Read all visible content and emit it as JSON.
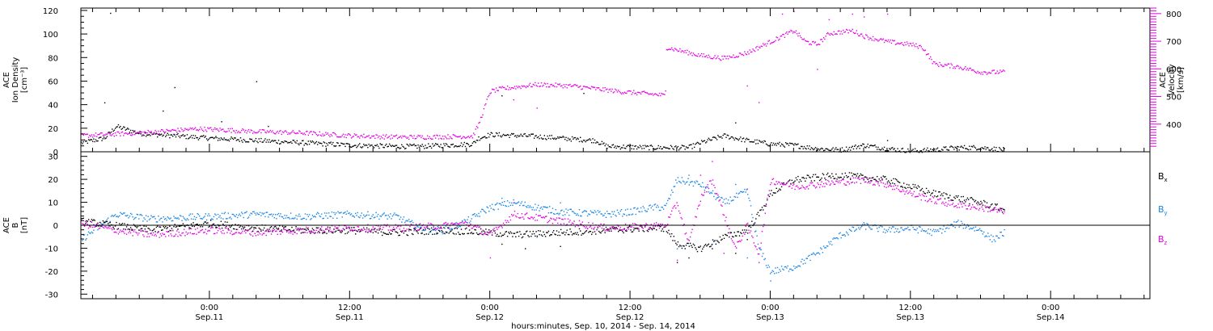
{
  "colors": {
    "black": "#000000",
    "magenta": "#e600e6",
    "blue": "#1a86e6"
  },
  "x_axis": {
    "title": "hours:minutes, Sep. 10, 2014 - Sep. 14, 2014",
    "range_hours": [
      -11,
      80.5
    ],
    "ticks": [
      {
        "hour": 0,
        "time": "0:00",
        "date": "Sep.11"
      },
      {
        "hour": 12,
        "time": "12:00",
        "date": "Sep.11"
      },
      {
        "hour": 24,
        "time": "0:00",
        "date": "Sep.12"
      },
      {
        "hour": 36,
        "time": "12:00",
        "date": "Sep.12"
      },
      {
        "hour": 48,
        "time": "0:00",
        "date": "Sep.13"
      },
      {
        "hour": 60,
        "time": "12:00",
        "date": "Sep.13"
      },
      {
        "hour": 72,
        "time": "0:00",
        "date": "Sep.14"
      }
    ]
  },
  "panel_top": {
    "left_axis": {
      "label_lines": [
        "ACE",
        "Ion Density",
        "[cm⁻³]"
      ],
      "range": [
        0,
        122
      ],
      "ticks": [
        0,
        20,
        40,
        60,
        80,
        100,
        120
      ]
    },
    "right_axis": {
      "label_lines": [
        "ACE",
        "Velocity",
        "[km/s]"
      ],
      "range": [
        300,
        820
      ],
      "ticks": [
        400,
        500,
        600,
        700,
        800
      ]
    }
  },
  "panel_bottom": {
    "left_axis": {
      "label_lines": [
        "ACE",
        "B",
        "[nT]"
      ],
      "range": [
        -32,
        32
      ],
      "ticks": [
        -30,
        -20,
        -10,
        0,
        10,
        20,
        30
      ]
    },
    "legend": [
      {
        "label": "B",
        "sub": "x",
        "color": "#000000"
      },
      {
        "label": "B",
        "sub": "y",
        "color": "#1a86e6"
      },
      {
        "label": "B",
        "sub": "z",
        "color": "#e600e6"
      }
    ]
  },
  "chart_data": [
    {
      "type": "scatter",
      "panel": "top",
      "series": [
        {
          "axis": "left",
          "color": "#000000",
          "knots": [
            [
              -11,
              8
            ],
            [
              -9,
              12
            ],
            [
              -8,
              22
            ],
            [
              -6,
              16
            ],
            [
              0,
              12
            ],
            [
              6,
              9
            ],
            [
              12,
              6
            ],
            [
              16,
              5
            ],
            [
              18,
              5
            ],
            [
              22.5,
              7
            ],
            [
              23,
              12
            ],
            [
              24,
              15
            ],
            [
              27,
              14
            ],
            [
              30,
              12
            ],
            [
              33,
              10
            ],
            [
              34,
              5
            ],
            [
              38,
              4
            ],
            [
              40,
              4
            ],
            [
              41,
              4
            ],
            [
              42,
              8
            ],
            [
              44,
              14
            ],
            [
              46,
              10
            ],
            [
              48,
              7
            ],
            [
              50,
              6
            ],
            [
              52,
              3
            ],
            [
              54,
              2
            ],
            [
              56,
              6
            ],
            [
              58,
              3
            ],
            [
              60,
              1
            ],
            [
              62,
              2
            ],
            [
              64,
              4
            ],
            [
              66,
              4
            ],
            [
              67,
              3
            ],
            [
              68,
              2
            ]
          ],
          "noise": 2,
          "spikes": [
            [
              -8.5,
              118
            ],
            [
              -9,
              42
            ],
            [
              -3,
              55
            ],
            [
              -4,
              35
            ],
            [
              1,
              26
            ],
            [
              4,
              60
            ],
            [
              5,
              22
            ],
            [
              25,
              48
            ],
            [
              32,
              50
            ],
            [
              45,
              25
            ],
            [
              58,
              10
            ]
          ]
        },
        {
          "axis": "right",
          "color": "#e600e6",
          "knots": [
            [
              -11,
              360
            ],
            [
              -6,
              370
            ],
            [
              -1,
              385
            ],
            [
              4,
              375
            ],
            [
              8,
              370
            ],
            [
              12,
              360
            ],
            [
              16,
              355
            ],
            [
              18,
              355
            ],
            [
              22.5,
              358
            ],
            [
              23,
              400
            ],
            [
              24,
              520
            ],
            [
              25,
              530
            ],
            [
              28,
              545
            ],
            [
              31,
              540
            ],
            [
              33,
              530
            ],
            [
              35,
              520
            ],
            [
              38,
              510
            ],
            [
              39,
              505
            ],
            [
              39.01,
              680
            ],
            [
              40,
              670
            ],
            [
              42,
              650
            ],
            [
              44,
              640
            ],
            [
              46,
              660
            ],
            [
              47,
              680
            ],
            [
              49,
              720
            ],
            [
              50,
              740
            ],
            [
              51,
              700
            ],
            [
              52,
              690
            ],
            [
              53,
              730
            ],
            [
              55,
              740
            ],
            [
              56,
              720
            ],
            [
              58,
              700
            ],
            [
              60,
              690
            ],
            [
              61,
              680
            ],
            [
              62,
              620
            ],
            [
              64,
              610
            ],
            [
              66,
              590
            ],
            [
              68,
              590
            ]
          ],
          "noise": 8,
          "spikes": [
            [
              46,
              540
            ],
            [
              47,
              480
            ],
            [
              49,
              800
            ],
            [
              50,
              810
            ],
            [
              52,
              600
            ],
            [
              53,
              780
            ],
            [
              55,
              800
            ],
            [
              56,
              790
            ],
            [
              58,
              800
            ],
            [
              26,
              490
            ],
            [
              28,
              460
            ]
          ]
        }
      ]
    },
    {
      "type": "scatter",
      "panel": "bottom",
      "series": [
        {
          "name": "Bx",
          "color": "#000000",
          "knots": [
            [
              -11,
              2
            ],
            [
              -8,
              0
            ],
            [
              -5,
              -2
            ],
            [
              0,
              1
            ],
            [
              4,
              -1
            ],
            [
              8,
              -2
            ],
            [
              12,
              -2
            ],
            [
              16,
              -3
            ],
            [
              20,
              -2
            ],
            [
              24,
              -3
            ],
            [
              26,
              -4
            ],
            [
              30,
              -3
            ],
            [
              34,
              -2
            ],
            [
              38,
              -1
            ],
            [
              39,
              -1
            ],
            [
              40,
              -8
            ],
            [
              42,
              -10
            ],
            [
              44,
              -5
            ],
            [
              46,
              -2
            ],
            [
              47,
              5
            ],
            [
              48,
              14
            ],
            [
              50,
              20
            ],
            [
              54,
              22
            ],
            [
              58,
              20
            ],
            [
              60,
              17
            ],
            [
              62,
              14
            ],
            [
              64,
              12
            ],
            [
              66,
              10
            ],
            [
              68,
              7
            ]
          ],
          "noise": 1.5,
          "spikes": [
            [
              40,
              -16
            ],
            [
              41,
              -14
            ],
            [
              43,
              -10
            ],
            [
              45,
              -12
            ],
            [
              46,
              -6
            ],
            [
              25,
              -8
            ],
            [
              27,
              -10
            ],
            [
              30,
              -9
            ]
          ]
        },
        {
          "name": "By",
          "color": "#1a86e6",
          "knots": [
            [
              -11,
              -6
            ],
            [
              -8,
              5
            ],
            [
              -5,
              3
            ],
            [
              0,
              4
            ],
            [
              4,
              5
            ],
            [
              8,
              4
            ],
            [
              12,
              5
            ],
            [
              16,
              4
            ],
            [
              18,
              -1
            ],
            [
              20,
              -2
            ],
            [
              22,
              2
            ],
            [
              24,
              8
            ],
            [
              26,
              10
            ],
            [
              30,
              6
            ],
            [
              34,
              5
            ],
            [
              36,
              6
            ],
            [
              38,
              8
            ],
            [
              39,
              8
            ],
            [
              40,
              20
            ],
            [
              42,
              18
            ],
            [
              44,
              10
            ],
            [
              46,
              15
            ],
            [
              47,
              -10
            ],
            [
              48,
              -20
            ],
            [
              50,
              -18
            ],
            [
              52,
              -12
            ],
            [
              54,
              -4
            ],
            [
              56,
              0
            ],
            [
              58,
              -2
            ],
            [
              60,
              -1
            ],
            [
              62,
              -3
            ],
            [
              64,
              1
            ],
            [
              66,
              -2
            ],
            [
              67,
              -6
            ],
            [
              68,
              -3
            ]
          ],
          "noise": 1.5,
          "spikes": [
            [
              40,
              -10
            ],
            [
              41,
              22
            ],
            [
              43,
              -8
            ],
            [
              45,
              18
            ],
            [
              46,
              -14
            ],
            [
              25,
              12
            ],
            [
              28,
              -5
            ],
            [
              30,
              10
            ],
            [
              48,
              -24
            ]
          ]
        },
        {
          "name": "Bz",
          "color": "#e600e6",
          "knots": [
            [
              -11,
              1
            ],
            [
              -8,
              -2
            ],
            [
              -5,
              -4
            ],
            [
              0,
              -2
            ],
            [
              4,
              -3
            ],
            [
              8,
              -2
            ],
            [
              12,
              -1
            ],
            [
              16,
              -1
            ],
            [
              20,
              0
            ],
            [
              22,
              1
            ],
            [
              24,
              -4
            ],
            [
              26,
              5
            ],
            [
              30,
              2
            ],
            [
              34,
              -1
            ],
            [
              38,
              0
            ],
            [
              39,
              0
            ],
            [
              40,
              10
            ],
            [
              41,
              -8
            ],
            [
              42,
              12
            ],
            [
              43,
              20
            ],
            [
              44,
              5
            ],
            [
              45,
              -10
            ],
            [
              46,
              0
            ],
            [
              47,
              -12
            ],
            [
              48,
              20
            ],
            [
              50,
              17
            ],
            [
              52,
              18
            ],
            [
              54,
              19
            ],
            [
              56,
              20
            ],
            [
              58,
              18
            ],
            [
              60,
              14
            ],
            [
              62,
              11
            ],
            [
              64,
              9
            ],
            [
              66,
              8
            ],
            [
              68,
              6
            ]
          ],
          "noise": 1.5,
          "spikes": [
            [
              24,
              -14
            ],
            [
              26,
              10
            ],
            [
              40,
              -15
            ],
            [
              42,
              22
            ],
            [
              43,
              28
            ],
            [
              44,
              -12
            ],
            [
              46,
              16
            ],
            [
              47,
              -16
            ]
          ]
        }
      ]
    }
  ]
}
